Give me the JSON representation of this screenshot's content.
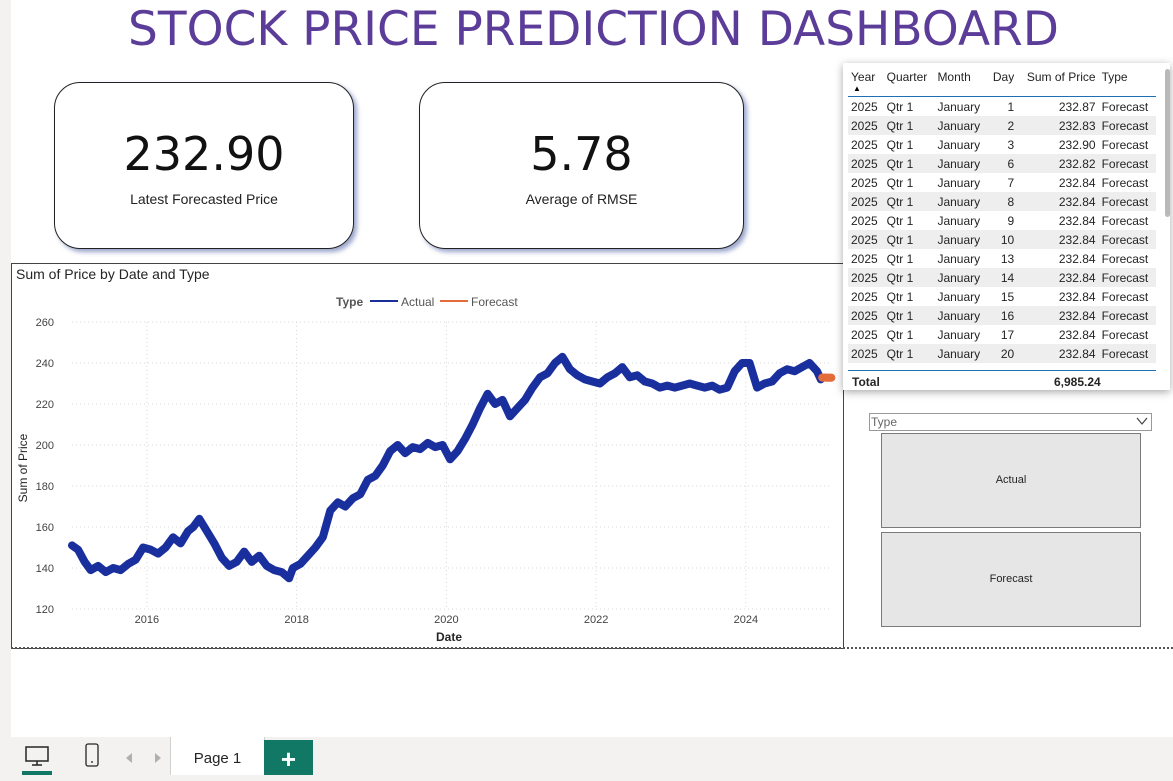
{
  "title": "STOCK PRICE PREDICTION DASHBOARD",
  "cards": [
    {
      "value": "232.90",
      "label": "Latest Forecasted Price"
    },
    {
      "value": "5.78",
      "label": "Average of RMSE"
    }
  ],
  "chart": {
    "title": "Sum of Price by Date and Type",
    "legend_title": "Type",
    "legend_items": [
      "Actual",
      "Forecast"
    ]
  },
  "chart_data": {
    "type": "line",
    "title": "Sum of Price by Date and Type",
    "xlabel": "Date",
    "ylabel": "Sum of Price",
    "xlim": [
      2015.0,
      2025.15
    ],
    "ylim": [
      120,
      260
    ],
    "yticks": [
      120,
      140,
      160,
      180,
      200,
      220,
      240,
      260
    ],
    "xticks": [
      2016,
      2018,
      2020,
      2022,
      2024
    ],
    "ytick_labels": [
      "120",
      "140",
      "160",
      "180",
      "200",
      "220",
      "240",
      "260"
    ],
    "xtick_labels": [
      "2016",
      "2018",
      "2020",
      "2022",
      "2024"
    ],
    "grid": true,
    "legend": "top-center",
    "series": [
      {
        "name": "Actual",
        "color": "#1a2f9e",
        "x": [
          2015.0,
          2015.08,
          2015.17,
          2015.25,
          2015.35,
          2015.45,
          2015.55,
          2015.65,
          2015.75,
          2015.85,
          2015.95,
          2016.05,
          2016.15,
          2016.25,
          2016.35,
          2016.45,
          2016.55,
          2016.62,
          2016.7,
          2016.8,
          2016.9,
          2017.0,
          2017.1,
          2017.2,
          2017.3,
          2017.4,
          2017.5,
          2017.6,
          2017.7,
          2017.8,
          2017.9,
          2017.95,
          2018.05,
          2018.15,
          2018.25,
          2018.35,
          2018.45,
          2018.55,
          2018.65,
          2018.75,
          2018.85,
          2018.95,
          2019.05,
          2019.15,
          2019.25,
          2019.35,
          2019.45,
          2019.55,
          2019.65,
          2019.75,
          2019.85,
          2019.95,
          2020.05,
          2020.15,
          2020.25,
          2020.35,
          2020.45,
          2020.55,
          2020.65,
          2020.75,
          2020.85,
          2020.95,
          2021.05,
          2021.15,
          2021.25,
          2021.35,
          2021.45,
          2021.55,
          2021.65,
          2021.75,
          2021.85,
          2021.95,
          2022.05,
          2022.15,
          2022.25,
          2022.35,
          2022.45,
          2022.55,
          2022.65,
          2022.75,
          2022.85,
          2022.95,
          2023.05,
          2023.15,
          2023.25,
          2023.35,
          2023.45,
          2023.55,
          2023.65,
          2023.75,
          2023.85,
          2023.95,
          2024.05,
          2024.15,
          2024.25,
          2024.35,
          2024.45,
          2024.55,
          2024.65,
          2024.75,
          2024.85,
          2024.95,
          2025.0
        ],
        "y": [
          151,
          149,
          143,
          139,
          141,
          138,
          140,
          139,
          142,
          144,
          150,
          149,
          147,
          150,
          155,
          152,
          158,
          160,
          164,
          158,
          152,
          145,
          141,
          143,
          148,
          143,
          146,
          141,
          139,
          138,
          135,
          140,
          142,
          146,
          150,
          155,
          168,
          172,
          170,
          174,
          176,
          183,
          185,
          190,
          197,
          200,
          196,
          199,
          198,
          201,
          199,
          200,
          193,
          197,
          203,
          210,
          218,
          225,
          220,
          222,
          214,
          218,
          222,
          228,
          233,
          235,
          240,
          243,
          237,
          234,
          232,
          231,
          230,
          233,
          235,
          238,
          233,
          234,
          231,
          230,
          228,
          229,
          228,
          229,
          230,
          229,
          228,
          229,
          227,
          228,
          236,
          240,
          240,
          228,
          230,
          231,
          235,
          237,
          236,
          238,
          240,
          236,
          232
        ]
      },
      {
        "name": "Forecast",
        "color": "#e46c3b",
        "x": [
          2025.02,
          2025.06,
          2025.1,
          2025.14
        ],
        "y": [
          232.87,
          232.9,
          232.84,
          232.84
        ]
      }
    ]
  },
  "table": {
    "columns": [
      "Year",
      "Quarter",
      "Month",
      "Day",
      "Sum of Price",
      "Type"
    ],
    "rows": [
      [
        "2025",
        "Qtr 1",
        "January",
        "1",
        "232.87",
        "Forecast"
      ],
      [
        "2025",
        "Qtr 1",
        "January",
        "2",
        "232.83",
        "Forecast"
      ],
      [
        "2025",
        "Qtr 1",
        "January",
        "3",
        "232.90",
        "Forecast"
      ],
      [
        "2025",
        "Qtr 1",
        "January",
        "6",
        "232.82",
        "Forecast"
      ],
      [
        "2025",
        "Qtr 1",
        "January",
        "7",
        "232.84",
        "Forecast"
      ],
      [
        "2025",
        "Qtr 1",
        "January",
        "8",
        "232.84",
        "Forecast"
      ],
      [
        "2025",
        "Qtr 1",
        "January",
        "9",
        "232.84",
        "Forecast"
      ],
      [
        "2025",
        "Qtr 1",
        "January",
        "10",
        "232.84",
        "Forecast"
      ],
      [
        "2025",
        "Qtr 1",
        "January",
        "13",
        "232.84",
        "Forecast"
      ],
      [
        "2025",
        "Qtr 1",
        "January",
        "14",
        "232.84",
        "Forecast"
      ],
      [
        "2025",
        "Qtr 1",
        "January",
        "15",
        "232.84",
        "Forecast"
      ],
      [
        "2025",
        "Qtr 1",
        "January",
        "16",
        "232.84",
        "Forecast"
      ],
      [
        "2025",
        "Qtr 1",
        "January",
        "17",
        "232.84",
        "Forecast"
      ],
      [
        "2025",
        "Qtr 1",
        "January",
        "20",
        "232.84",
        "Forecast"
      ]
    ],
    "total_label": "Total",
    "total_value": "6,985.24"
  },
  "slicer": {
    "title": "Type",
    "options": [
      "Actual",
      "Forecast"
    ]
  },
  "footer": {
    "page_tab": "Page 1",
    "add_label": "+",
    "icons": [
      "desktop-icon",
      "phone-icon",
      "prev-page-icon",
      "next-page-icon"
    ]
  }
}
